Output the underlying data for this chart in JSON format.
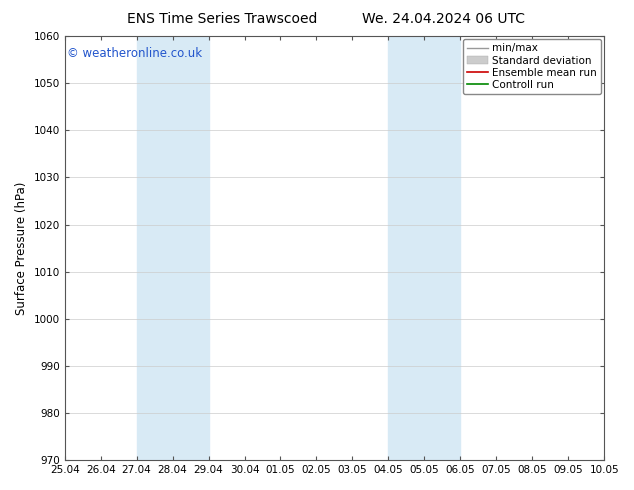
{
  "title_left": "ENS Time Series Trawscoed",
  "title_right": "We. 24.04.2024 06 UTC",
  "ylabel": "Surface Pressure (hPa)",
  "ylim": [
    970,
    1060
  ],
  "yticks": [
    970,
    980,
    990,
    1000,
    1010,
    1020,
    1030,
    1040,
    1050,
    1060
  ],
  "xlim": [
    0,
    15
  ],
  "xtick_labels": [
    "25.04",
    "26.04",
    "27.04",
    "28.04",
    "29.04",
    "30.04",
    "01.05",
    "02.05",
    "03.05",
    "04.05",
    "05.05",
    "06.05",
    "07.05",
    "08.05",
    "09.05",
    "10.05"
  ],
  "xtick_positions": [
    0,
    1,
    2,
    3,
    4,
    5,
    6,
    7,
    8,
    9,
    10,
    11,
    12,
    13,
    14,
    15
  ],
  "shaded_bands": [
    {
      "xmin": 2,
      "xmax": 4,
      "color": "#d8eaf5"
    },
    {
      "xmin": 9,
      "xmax": 11,
      "color": "#d8eaf5"
    }
  ],
  "watermark": "© weatheronline.co.uk",
  "watermark_color": "#2255cc",
  "legend_entries": [
    {
      "label": "min/max",
      "color": "#999999",
      "lw": 1.0,
      "type": "line"
    },
    {
      "label": "Standard deviation",
      "color": "#cccccc",
      "lw": 5,
      "type": "bar"
    },
    {
      "label": "Ensemble mean run",
      "color": "#cc0000",
      "lw": 1.2,
      "type": "line"
    },
    {
      "label": "Controll run",
      "color": "#008800",
      "lw": 1.2,
      "type": "line"
    }
  ],
  "background_color": "#ffffff",
  "plot_bg_color": "#ffffff",
  "title_fontsize": 10,
  "tick_fontsize": 7.5,
  "ylabel_fontsize": 8.5,
  "watermark_fontsize": 8.5,
  "legend_fontsize": 7.5
}
